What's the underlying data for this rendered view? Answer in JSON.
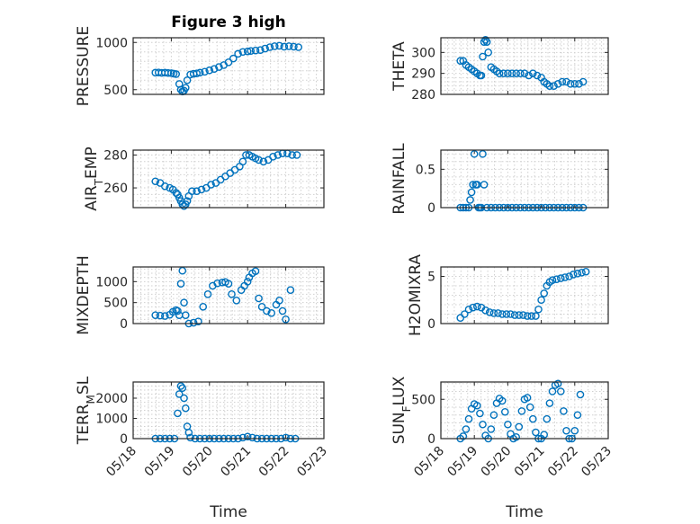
{
  "figure": {
    "title": "Figure 3 high",
    "xlabel": "Time",
    "date_ticks": [
      "05/18",
      "05/19",
      "05/20",
      "05/21",
      "05/22",
      "05/23"
    ],
    "marker_color": "#0072BD"
  },
  "chart_data": [
    {
      "type": "scatter",
      "variable": "PRESSURE",
      "ylabel": "PRESSURE",
      "title": "Figure 3 high",
      "xlim": [
        "05/18",
        "05/23"
      ],
      "ylim": [
        450,
        1050
      ],
      "yticks": [
        500,
        1000
      ],
      "x": [
        "05/18 14:00",
        "05/18 16:00",
        "05/18 18:00",
        "05/18 20:00",
        "05/18 22:00",
        "05/19 00:00",
        "05/19 01:30",
        "05/19 03:00",
        "05/19 05:00",
        "05/19 06:00",
        "05/19 07:00",
        "05/19 08:00",
        "05/19 09:00",
        "05/19 10:00",
        "05/19 12:00",
        "05/19 14:00",
        "05/19 16:00",
        "05/19 18:00",
        "05/19 21:00",
        "05/20 00:00",
        "05/20 03:00",
        "05/20 06:00",
        "05/20 09:00",
        "05/20 12:00",
        "05/20 15:00",
        "05/20 18:00",
        "05/20 21:00",
        "05/21 00:00",
        "05/21 02:00",
        "05/21 05:00",
        "05/21 08:00",
        "05/21 11:00",
        "05/21 14:00",
        "05/21 17:00",
        "05/21 20:00",
        "05/21 23:00",
        "05/22 02:00",
        "05/22 05:00",
        "05/22 08:00"
      ],
      "y": [
        680,
        682,
        678,
        680,
        677,
        675,
        670,
        665,
        560,
        500,
        480,
        490,
        520,
        600,
        660,
        668,
        672,
        680,
        690,
        705,
        720,
        740,
        760,
        790,
        830,
        880,
        900,
        905,
        910,
        915,
        920,
        935,
        950,
        960,
        965,
        955,
        960,
        955,
        950
      ]
    },
    {
      "type": "scatter",
      "variable": "THETA",
      "ylabel": "THETA",
      "xlim": [
        "05/18",
        "05/23"
      ],
      "ylim": [
        280,
        307
      ],
      "yticks": [
        280,
        290,
        300
      ],
      "x": [
        "05/18 14:00",
        "05/18 16:00",
        "05/18 18:00",
        "05/18 20:00",
        "05/18 22:00",
        "05/19 00:00",
        "05/19 02:00",
        "05/19 04:00",
        "05/19 05:00",
        "05/19 06:00",
        "05/19 07:00",
        "05/19 08:00",
        "05/19 09:00",
        "05/19 10:00",
        "05/19 12:00",
        "05/19 14:00",
        "05/19 16:00",
        "05/19 18:00",
        "05/19 21:00",
        "05/20 00:00",
        "05/20 03:00",
        "05/20 06:00",
        "05/20 09:00",
        "05/20 12:00",
        "05/20 15:00",
        "05/20 18:00",
        "05/20 21:00",
        "05/21 00:00",
        "05/21 02:00",
        "05/21 04:00",
        "05/21 06:00",
        "05/21 09:00",
        "05/21 12:00",
        "05/21 15:00",
        "05/21 18:00",
        "05/21 21:00",
        "05/22 00:00",
        "05/22 03:00",
        "05/22 06:00"
      ],
      "y": [
        296,
        296,
        294,
        293,
        292,
        291,
        290,
        289,
        289,
        298,
        305,
        306,
        305,
        300,
        293,
        292,
        291,
        290,
        290,
        290,
        290,
        290,
        290,
        290,
        289,
        290,
        289,
        288,
        286,
        285,
        284,
        284,
        285,
        286,
        286,
        285,
        285,
        285,
        286
      ]
    },
    {
      "type": "scatter",
      "variable": "AIR_TEMP",
      "ylabel": "AIR_TEMP",
      "xlim": [
        "05/18",
        "05/23"
      ],
      "ylim": [
        248,
        283
      ],
      "yticks": [
        260,
        280
      ],
      "x": [
        "05/18 14:00",
        "05/18 17:00",
        "05/18 20:00",
        "05/18 23:00",
        "05/19 01:00",
        "05/19 03:00",
        "05/19 04:00",
        "05/19 05:00",
        "05/19 06:00",
        "05/19 07:00",
        "05/19 08:00",
        "05/19 09:00",
        "05/19 10:00",
        "05/19 11:00",
        "05/19 13:00",
        "05/19 16:00",
        "05/19 19:00",
        "05/19 22:00",
        "05/20 01:00",
        "05/20 04:00",
        "05/20 07:00",
        "05/20 10:00",
        "05/20 13:00",
        "05/20 16:00",
        "05/20 19:00",
        "05/20 21:00",
        "05/20 23:00",
        "05/21 01:00",
        "05/21 03:00",
        "05/21 05:00",
        "05/21 07:00",
        "05/21 10:00",
        "05/21 13:00",
        "05/21 16:00",
        "05/21 19:00",
        "05/21 22:00",
        "05/22 01:00",
        "05/22 04:00",
        "05/22 07:00"
      ],
      "y": [
        264,
        263,
        261,
        260,
        259,
        257,
        256,
        254,
        252,
        250,
        249,
        250,
        252,
        255,
        258,
        258,
        259,
        260,
        262,
        263,
        265,
        267,
        269,
        271,
        273,
        276,
        280,
        280,
        279,
        278,
        277,
        276,
        277,
        279,
        280,
        281,
        281,
        280,
        280
      ]
    },
    {
      "type": "scatter",
      "variable": "RAINFALL",
      "ylabel": "RAINFALL",
      "xlim": [
        "05/18",
        "05/23"
      ],
      "ylim": [
        0,
        0.75
      ],
      "yticks": [
        0,
        0.5
      ],
      "x": [
        "05/18 14:00",
        "05/18 16:00",
        "05/18 18:00",
        "05/18 20:00",
        "05/18 21:00",
        "05/18 22:00",
        "05/18 23:00",
        "05/19 00:00",
        "05/19 01:00",
        "05/19 02:00",
        "05/19 03:00",
        "05/19 04:00",
        "05/19 05:00",
        "05/19 06:00",
        "05/19 07:00",
        "05/19 09:00",
        "05/19 12:00",
        "05/19 15:00",
        "05/19 18:00",
        "05/19 21:00",
        "05/20 00:00",
        "05/20 03:00",
        "05/20 06:00",
        "05/20 09:00",
        "05/20 12:00",
        "05/20 15:00",
        "05/20 18:00",
        "05/20 21:00",
        "05/21 00:00",
        "05/21 03:00",
        "05/21 06:00",
        "05/21 09:00",
        "05/21 12:00",
        "05/21 15:00",
        "05/21 18:00",
        "05/21 21:00",
        "05/22 00:00",
        "05/22 03:00",
        "05/22 06:00"
      ],
      "y": [
        0,
        0,
        0,
        0,
        0.1,
        0.2,
        0.3,
        0.7,
        0.3,
        0.3,
        0,
        0,
        0,
        0.7,
        0.3,
        0,
        0,
        0,
        0,
        0,
        0,
        0,
        0,
        0,
        0,
        0,
        0,
        0,
        0,
        0,
        0,
        0,
        0,
        0,
        0,
        0,
        0,
        0,
        0
      ]
    },
    {
      "type": "scatter",
      "variable": "MIXDEPTH",
      "ylabel": "MIXDEPTH",
      "xlim": [
        "05/18",
        "05/23"
      ],
      "ylim": [
        0,
        1350
      ],
      "yticks": [
        0,
        500,
        1000
      ],
      "x": [
        "05/18 14:00",
        "05/18 17:00",
        "05/18 20:00",
        "05/18 23:00",
        "05/19 01:00",
        "05/19 03:00",
        "05/19 04:00",
        "05/19 05:00",
        "05/19 06:00",
        "05/19 07:00",
        "05/19 08:00",
        "05/19 09:00",
        "05/19 11:00",
        "05/19 14:00",
        "05/19 17:00",
        "05/19 20:00",
        "05/19 23:00",
        "05/20 02:00",
        "05/20 05:00",
        "05/20 08:00",
        "05/20 10:00",
        "05/20 12:00",
        "05/20 14:00",
        "05/20 17:00",
        "05/20 20:00",
        "05/20 22:00",
        "05/21 00:00",
        "05/21 01:00",
        "05/21 03:00",
        "05/21 05:00",
        "05/21 07:00",
        "05/21 09:00",
        "05/21 12:00",
        "05/21 15:00",
        "05/21 18:00",
        "05/21 20:00",
        "05/21 22:00",
        "05/22 00:00",
        "05/22 03:00"
      ],
      "y": [
        200,
        190,
        180,
        210,
        280,
        320,
        300,
        200,
        950,
        1260,
        500,
        200,
        0,
        20,
        50,
        400,
        700,
        900,
        960,
        980,
        990,
        950,
        700,
        550,
        800,
        900,
        1000,
        1100,
        1200,
        1250,
        600,
        400,
        300,
        250,
        450,
        550,
        300,
        100,
        800
      ]
    },
    {
      "type": "scatter",
      "variable": "H2OMIXRA",
      "ylabel": "H2OMIXRA",
      "xlim": [
        "05/18",
        "05/23"
      ],
      "ylim": [
        0,
        6
      ],
      "yticks": [
        0,
        5
      ],
      "x": [
        "05/18 14:00",
        "05/18 17:00",
        "05/18 20:00",
        "05/18 23:00",
        "05/19 02:00",
        "05/19 05:00",
        "05/19 08:00",
        "05/19 11:00",
        "05/19 14:00",
        "05/19 17:00",
        "05/19 20:00",
        "05/19 23:00",
        "05/20 02:00",
        "05/20 05:00",
        "05/20 08:00",
        "05/20 11:00",
        "05/20 14:00",
        "05/20 17:00",
        "05/20 20:00",
        "05/20 22:00",
        "05/21 00:00",
        "05/21 02:00",
        "05/21 04:00",
        "05/21 06:00",
        "05/21 08:00",
        "05/21 11:00",
        "05/21 14:00",
        "05/21 17:00",
        "05/21 20:00",
        "05/21 23:00",
        "05/22 02:00",
        "05/22 05:00",
        "05/22 08:00"
      ],
      "y": [
        0.6,
        1.0,
        1.5,
        1.7,
        1.8,
        1.7,
        1.4,
        1.2,
        1.1,
        1.1,
        1.0,
        1.0,
        1.0,
        0.9,
        0.9,
        0.9,
        0.8,
        0.8,
        0.8,
        1.5,
        2.5,
        3.2,
        4.0,
        4.4,
        4.6,
        4.7,
        4.8,
        4.9,
        5.0,
        5.2,
        5.3,
        5.4,
        5.5
      ]
    },
    {
      "type": "scatter",
      "variable": "TERR_MSL",
      "ylabel": "TERR_MSL",
      "xlim": [
        "05/18",
        "05/23"
      ],
      "ylim": [
        0,
        2800
      ],
      "yticks": [
        0,
        1000,
        2000
      ],
      "x": [
        "05/18 14:00",
        "05/18 17:00",
        "05/18 20:00",
        "05/18 23:00",
        "05/19 02:00",
        "05/19 04:00",
        "05/19 05:00",
        "05/19 06:00",
        "05/19 07:00",
        "05/19 08:00",
        "05/19 09:00",
        "05/19 10:00",
        "05/19 11:00",
        "05/19 12:00",
        "05/19 15:00",
        "05/19 18:00",
        "05/19 21:00",
        "05/20 00:00",
        "05/20 03:00",
        "05/20 06:00",
        "05/20 09:00",
        "05/20 12:00",
        "05/20 15:00",
        "05/20 18:00",
        "05/20 21:00",
        "05/21 00:00",
        "05/21 03:00",
        "05/21 06:00",
        "05/21 09:00",
        "05/21 12:00",
        "05/21 15:00",
        "05/21 18:00",
        "05/21 21:00",
        "05/22 00:00",
        "05/22 03:00",
        "05/22 06:00"
      ],
      "y": [
        0,
        0,
        0,
        0,
        0,
        1250,
        2200,
        2600,
        2500,
        2000,
        1500,
        600,
        300,
        50,
        0,
        0,
        0,
        0,
        0,
        0,
        0,
        0,
        0,
        0,
        50,
        100,
        50,
        0,
        0,
        0,
        0,
        0,
        0,
        50,
        0,
        0
      ]
    },
    {
      "type": "scatter",
      "variable": "SUN_FLUX",
      "ylabel": "SUN_FLUX",
      "xlim": [
        "05/18",
        "05/23"
      ],
      "ylim": [
        0,
        720
      ],
      "yticks": [
        0,
        500
      ],
      "x": [
        "05/18 14:00",
        "05/18 16:00",
        "05/18 18:00",
        "05/18 20:00",
        "05/18 22:00",
        "05/19 00:00",
        "05/19 02:00",
        "05/19 04:00",
        "05/19 06:00",
        "05/19 08:00",
        "05/19 10:00",
        "05/19 12:00",
        "05/19 14:00",
        "05/19 16:00",
        "05/19 18:00",
        "05/19 20:00",
        "05/19 22:00",
        "05/20 00:00",
        "05/20 02:00",
        "05/20 04:00",
        "05/20 06:00",
        "05/20 08:00",
        "05/20 10:00",
        "05/20 12:00",
        "05/20 14:00",
        "05/20 16:00",
        "05/20 18:00",
        "05/20 20:00",
        "05/20 22:00",
        "05/21 00:00",
        "05/21 02:00",
        "05/21 04:00",
        "05/21 06:00",
        "05/21 08:00",
        "05/21 10:00",
        "05/21 12:00",
        "05/21 14:00",
        "05/21 16:00",
        "05/21 18:00",
        "05/21 20:00",
        "05/21 22:00",
        "05/22 00:00",
        "05/22 02:00",
        "05/22 04:00"
      ],
      "y": [
        0,
        30,
        120,
        250,
        380,
        440,
        420,
        320,
        180,
        40,
        0,
        120,
        300,
        450,
        510,
        480,
        340,
        180,
        60,
        0,
        20,
        150,
        350,
        500,
        520,
        400,
        250,
        80,
        0,
        0,
        50,
        250,
        450,
        600,
        680,
        700,
        600,
        350,
        100,
        0,
        0,
        100,
        300,
        560
      ]
    }
  ]
}
